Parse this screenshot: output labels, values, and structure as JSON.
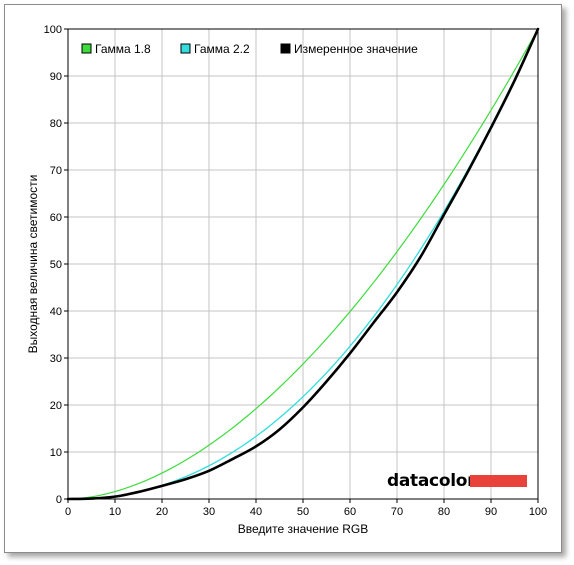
{
  "chart_data": {
    "type": "line",
    "title": "",
    "xlabel": "Введите значение RGB",
    "ylabel": "Выходная величина светимости",
    "xlim": [
      0,
      100
    ],
    "ylim": [
      0,
      100
    ],
    "xticks": [
      "0",
      "10",
      "20",
      "30",
      "40",
      "50",
      "60",
      "70",
      "80",
      "90",
      "100"
    ],
    "yticks": [
      "0",
      "10",
      "20",
      "30",
      "40",
      "50",
      "60",
      "70",
      "80",
      "90",
      "100"
    ],
    "grid": true,
    "legend_position": "top-left",
    "series": [
      {
        "name": "Гамма 1.8",
        "color": "#3ddc3d",
        "gamma": 1.8
      },
      {
        "name": "Гамма 2.2",
        "color": "#33dddd",
        "gamma": 2.2
      },
      {
        "name": "Измеренное значение",
        "color": "#000000",
        "x": [
          0,
          5,
          10,
          15,
          20,
          25,
          30,
          35,
          40,
          45,
          50,
          55,
          60,
          65,
          70,
          75,
          80,
          85,
          90,
          95,
          100
        ],
        "y": [
          0,
          0.1,
          0.5,
          1.5,
          2.8,
          4.2,
          6.0,
          8.5,
          11.2,
          14.8,
          19.5,
          25.0,
          31.0,
          37.5,
          44.0,
          51.5,
          60.5,
          69.5,
          79.0,
          89.0,
          100
        ]
      }
    ]
  },
  "brand": {
    "name": "datacolor",
    "bar_color": "#e8423b"
  }
}
